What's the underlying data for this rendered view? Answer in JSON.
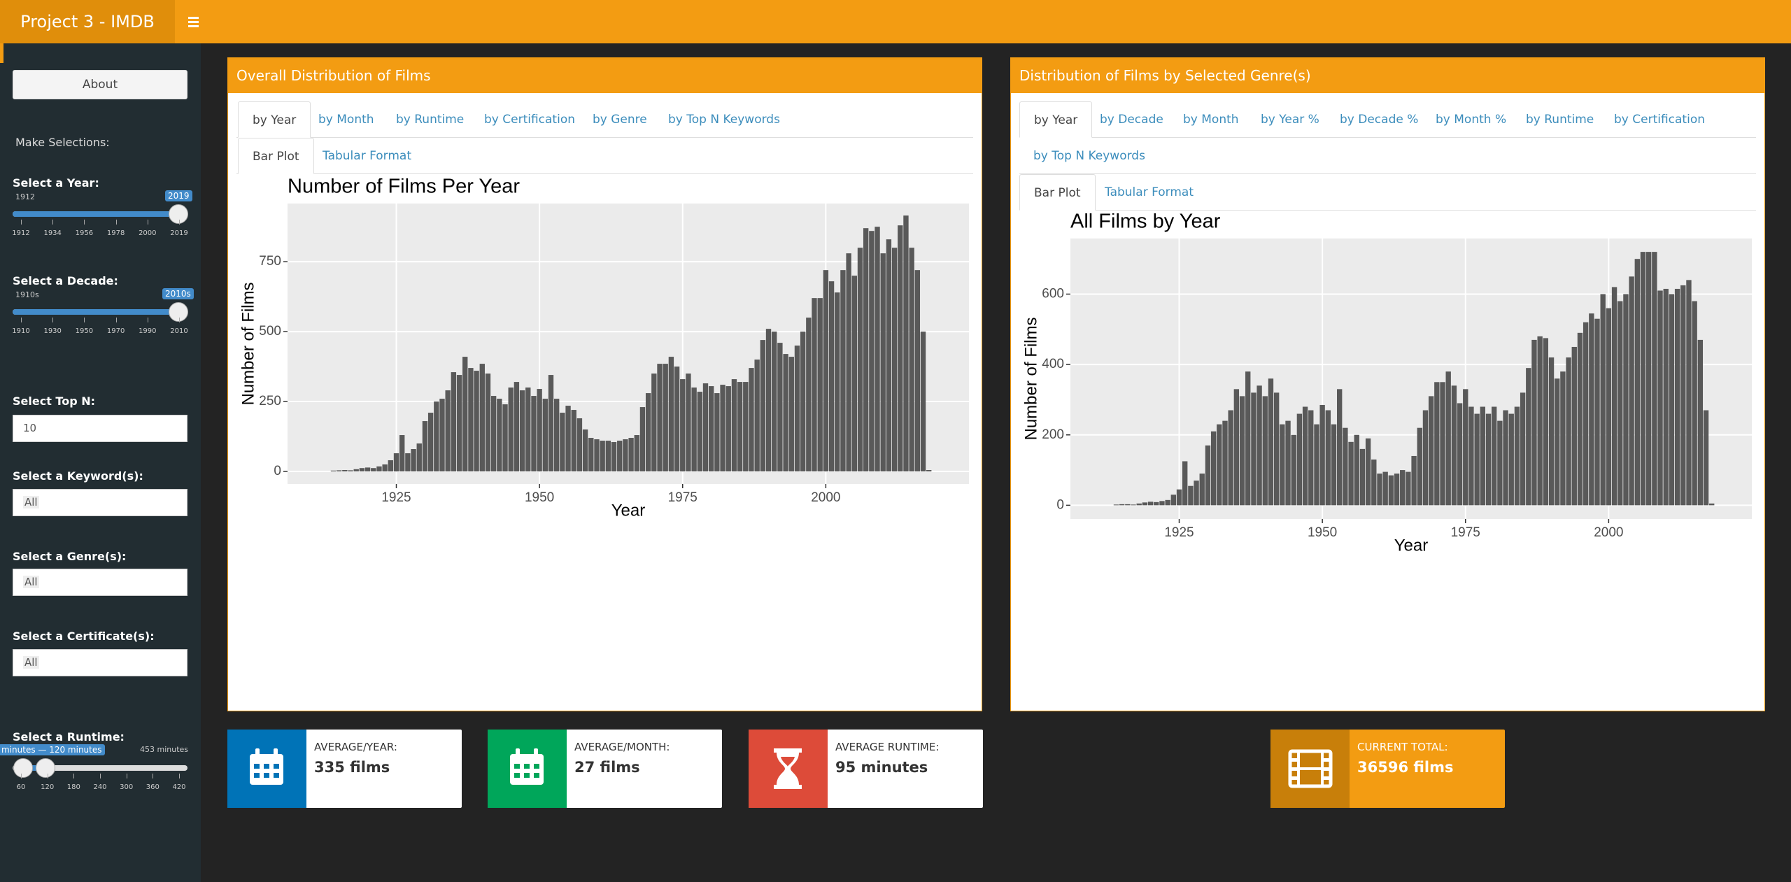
{
  "header": {
    "title": "Project 3 - IMDB"
  },
  "sidebar": {
    "about": "About",
    "heading": "Make Selections:",
    "year_slider": {
      "label": "Select a Year:",
      "min": "1912",
      "value": "2019",
      "ticks": [
        "1912",
        "1934",
        "1956",
        "1978",
        "2000",
        "2019"
      ]
    },
    "decade_slider": {
      "label": "Select a Decade:",
      "min": "1910s",
      "value": "2010s",
      "ticks": [
        "1910",
        "1930",
        "1950",
        "1970",
        "1990",
        "2010"
      ]
    },
    "top_n": {
      "label": "Select Top N:",
      "value": "10"
    },
    "keyword": {
      "label": "Select a Keyword(s):",
      "value": "All"
    },
    "genre": {
      "label": "Select a Genre(s):",
      "value": "All"
    },
    "certificate": {
      "label": "Select a Certificate(s):",
      "value": "All"
    },
    "runtime_slider": {
      "label": "Select a Runtime:",
      "value": "minutes — 120 minutes",
      "max": "453 minutes",
      "ticks": [
        "60",
        "120",
        "180",
        "240",
        "300",
        "360",
        "420"
      ]
    }
  },
  "panels": [
    {
      "title": "Overall Distribution of Films",
      "tabs": [
        "by Year",
        "by Month",
        "by Runtime",
        "by Certification",
        "by Genre",
        "by Top N Keywords"
      ],
      "subtabs": [
        "Bar Plot",
        "Tabular Format"
      ]
    },
    {
      "title": "Distribution of Films by Selected Genre(s)",
      "tabs": [
        "by Year",
        "by Decade",
        "by Month",
        "by Year %",
        "by Decade %",
        "by Month %",
        "by Runtime",
        "by Certification",
        "by Top N Keywords"
      ],
      "subtabs": [
        "Bar Plot",
        "Tabular Format"
      ]
    }
  ],
  "chart_data": [
    {
      "type": "bar",
      "title": "Number of Films Per Year",
      "x_label": "Year",
      "y_label": "Number of Films",
      "color": "#595959",
      "grid": true,
      "xlim": [
        1906,
        2025
      ],
      "ylim": [
        -45,
        958
      ],
      "xticks": [
        1925,
        1950,
        1975,
        2000
      ],
      "yticks": [
        0,
        250,
        500,
        750
      ],
      "x": [
        1914,
        1915,
        1916,
        1917,
        1918,
        1919,
        1920,
        1921,
        1922,
        1923,
        1924,
        1925,
        1926,
        1927,
        1928,
        1929,
        1930,
        1931,
        1932,
        1933,
        1934,
        1935,
        1936,
        1937,
        1938,
        1939,
        1940,
        1941,
        1942,
        1943,
        1944,
        1945,
        1946,
        1947,
        1948,
        1949,
        1950,
        1951,
        1952,
        1953,
        1954,
        1955,
        1956,
        1957,
        1958,
        1959,
        1960,
        1961,
        1962,
        1963,
        1964,
        1965,
        1966,
        1967,
        1968,
        1969,
        1970,
        1971,
        1972,
        1973,
        1974,
        1975,
        1976,
        1977,
        1978,
        1979,
        1980,
        1981,
        1982,
        1983,
        1984,
        1985,
        1986,
        1987,
        1988,
        1989,
        1990,
        1991,
        1992,
        1993,
        1994,
        1995,
        1996,
        1997,
        1998,
        1999,
        2000,
        2001,
        2002,
        2003,
        2004,
        2005,
        2006,
        2007,
        2008,
        2009,
        2010,
        2011,
        2012,
        2013,
        2014,
        2015,
        2016,
        2017,
        2018
      ],
      "values": [
        3,
        4,
        5,
        4,
        8,
        12,
        14,
        12,
        18,
        25,
        40,
        65,
        130,
        65,
        80,
        100,
        180,
        210,
        250,
        260,
        290,
        355,
        345,
        410,
        370,
        360,
        385,
        350,
        270,
        260,
        240,
        300,
        320,
        290,
        300,
        270,
        295,
        260,
        345,
        260,
        210,
        235,
        220,
        190,
        150,
        120,
        115,
        110,
        110,
        105,
        110,
        115,
        120,
        130,
        230,
        280,
        350,
        385,
        385,
        410,
        375,
        330,
        350,
        300,
        285,
        315,
        305,
        280,
        310,
        305,
        330,
        320,
        320,
        370,
        400,
        470,
        510,
        500,
        460,
        420,
        410,
        450,
        500,
        550,
        620,
        620,
        720,
        680,
        640,
        720,
        780,
        700,
        800,
        870,
        860,
        875,
        780,
        830,
        800,
        880,
        915,
        800,
        720,
        500,
        5
      ]
    },
    {
      "type": "bar",
      "title": "All Films by Year",
      "x_label": "Year",
      "y_label": "Number of Films",
      "color": "#595959",
      "grid": true,
      "xlim": [
        1906,
        2025
      ],
      "ylim": [
        -39,
        758
      ],
      "xticks": [
        1925,
        1950,
        1975,
        2000
      ],
      "yticks": [
        0,
        200,
        400,
        600
      ],
      "x": [
        1914,
        1915,
        1916,
        1917,
        1918,
        1919,
        1920,
        1921,
        1922,
        1923,
        1924,
        1925,
        1926,
        1927,
        1928,
        1929,
        1930,
        1931,
        1932,
        1933,
        1934,
        1935,
        1936,
        1937,
        1938,
        1939,
        1940,
        1941,
        1942,
        1943,
        1944,
        1945,
        1946,
        1947,
        1948,
        1949,
        1950,
        1951,
        1952,
        1953,
        1954,
        1955,
        1956,
        1957,
        1958,
        1959,
        1960,
        1961,
        1962,
        1963,
        1964,
        1965,
        1966,
        1967,
        1968,
        1969,
        1970,
        1971,
        1972,
        1973,
        1974,
        1975,
        1976,
        1977,
        1978,
        1979,
        1980,
        1981,
        1982,
        1983,
        1984,
        1985,
        1986,
        1987,
        1988,
        1989,
        1990,
        1991,
        1992,
        1993,
        1994,
        1995,
        1996,
        1997,
        1998,
        1999,
        2000,
        2001,
        2002,
        2003,
        2004,
        2005,
        2006,
        2007,
        2008,
        2009,
        2010,
        2011,
        2012,
        2013,
        2014,
        2015,
        2016,
        2017,
        2018
      ],
      "values": [
        2,
        3,
        3,
        2,
        5,
        8,
        10,
        9,
        12,
        15,
        30,
        45,
        125,
        55,
        70,
        90,
        170,
        210,
        230,
        240,
        270,
        330,
        310,
        380,
        320,
        340,
        310,
        360,
        320,
        230,
        240,
        200,
        260,
        280,
        270,
        230,
        285,
        270,
        230,
        330,
        220,
        180,
        200,
        160,
        190,
        130,
        90,
        95,
        85,
        90,
        100,
        95,
        140,
        220,
        270,
        310,
        350,
        350,
        380,
        340,
        290,
        330,
        280,
        260,
        280,
        260,
        280,
        240,
        270,
        260,
        280,
        320,
        390,
        470,
        480,
        475,
        420,
        360,
        380,
        420,
        450,
        490,
        520,
        545,
        530,
        600,
        560,
        620,
        580,
        600,
        650,
        700,
        720,
        720,
        720,
        610,
        615,
        600,
        615,
        625,
        640,
        580,
        470,
        270,
        5
      ]
    }
  ],
  "info_boxes": [
    {
      "label": "AVERAGE/YEAR:",
      "value": "335 films",
      "color": "#0073b7"
    },
    {
      "label": "AVERAGE/MONTH:",
      "value": "27 films",
      "color": "#00a65a"
    },
    {
      "label": "AVERAGE RUNTIME:",
      "value": "95 minutes",
      "color": "#dd4b39"
    },
    {
      "label": "CURRENT TOTAL:",
      "value": "36596 films",
      "color": "#c87f0a"
    }
  ]
}
